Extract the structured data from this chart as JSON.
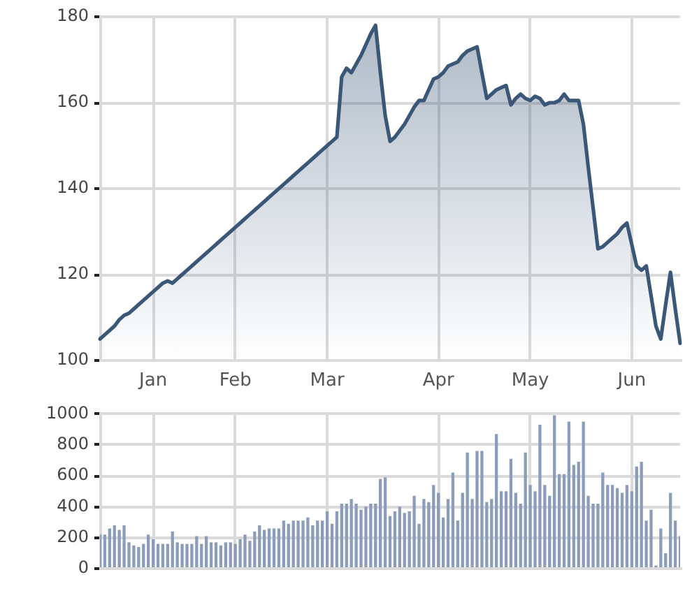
{
  "chart_data": [
    {
      "type": "area",
      "categories": [
        null,
        null,
        null,
        null,
        null,
        null,
        null,
        null,
        null,
        null,
        null,
        "Jan",
        null,
        null,
        null,
        null,
        null,
        null,
        null,
        null,
        null,
        null,
        null,
        null,
        null,
        null,
        null,
        null,
        "Feb",
        null,
        null,
        null,
        null,
        null,
        null,
        null,
        null,
        null,
        null,
        null,
        null,
        null,
        null,
        null,
        null,
        null,
        null,
        "Mar",
        null,
        null,
        null,
        null,
        null,
        null,
        null,
        null,
        null,
        null,
        null,
        null,
        null,
        null,
        null,
        null,
        null,
        null,
        null,
        null,
        null,
        null,
        "Apr",
        null,
        null,
        null,
        null,
        null,
        null,
        null,
        null,
        null,
        null,
        null,
        null,
        null,
        null,
        null,
        null,
        null,
        null,
        "May",
        null,
        null,
        null,
        null,
        null,
        null,
        null,
        null,
        null,
        null,
        null,
        null,
        null,
        null,
        null,
        null,
        null,
        null,
        null,
        null,
        "Jun",
        null,
        null,
        null,
        null,
        null,
        null,
        null,
        null,
        null,
        null
      ],
      "values": [
        105,
        106,
        107,
        108,
        109.5,
        110.5,
        111,
        112,
        113,
        114,
        115,
        116,
        117,
        118,
        118.5,
        118,
        119,
        120,
        121,
        122,
        123,
        124,
        125,
        126,
        127,
        128,
        129,
        130,
        131,
        132,
        133,
        134,
        135,
        136,
        137,
        138,
        139,
        140,
        141,
        142,
        143,
        144,
        145,
        146,
        147,
        148,
        149,
        150,
        151,
        152,
        166,
        168,
        167,
        169,
        171,
        173.5,
        176,
        178,
        167,
        157,
        151,
        152,
        153.5,
        155,
        157,
        159,
        160.5,
        160.5,
        163,
        165.5,
        166,
        167,
        168.5,
        169,
        169.5,
        171,
        172,
        172.5,
        173,
        167,
        161,
        162,
        163,
        163.5,
        164,
        159.5,
        161,
        162,
        161,
        160.5,
        161.5,
        161,
        159.5,
        160,
        160,
        160.5,
        162,
        160.5,
        160.5,
        160.5,
        155,
        145,
        135.5,
        126,
        126.5,
        127.5,
        128.5,
        129.5,
        131,
        132,
        127,
        122,
        121,
        122,
        115,
        108,
        105,
        113,
        120.5,
        112,
        104
      ],
      "color": "#3a5777",
      "ylim": [
        100,
        180
      ],
      "yticks": [
        100,
        120,
        140,
        160,
        180
      ],
      "grid": true,
      "marker": "none"
    },
    {
      "type": "bar",
      "categories": [
        null,
        null,
        null,
        null,
        null,
        null,
        null,
        null,
        null,
        null,
        null,
        null,
        null,
        null,
        null,
        null,
        null,
        null,
        null,
        null,
        null,
        null,
        null,
        null,
        null,
        null,
        null,
        null,
        null,
        null,
        null,
        null,
        null,
        null,
        null,
        null,
        null,
        null,
        null,
        null,
        null,
        null,
        null,
        null,
        null,
        null,
        null,
        null,
        null,
        null,
        null,
        null,
        null,
        null,
        null,
        null,
        null,
        null,
        null,
        null,
        null,
        null,
        null,
        null,
        null,
        null,
        null,
        null,
        null,
        null,
        null,
        null,
        null,
        null,
        null,
        null,
        null,
        null,
        null,
        null,
        null,
        null,
        null,
        null,
        null,
        null,
        null,
        null,
        null,
        null,
        null,
        null,
        null,
        null,
        null,
        null,
        null,
        null,
        null,
        null,
        null,
        null,
        null,
        null,
        null,
        null,
        null,
        null,
        null,
        null,
        null,
        null,
        null,
        null,
        null,
        null,
        null,
        null,
        null,
        null,
        null
      ],
      "values": [
        220,
        220,
        260,
        280,
        250,
        280,
        170,
        150,
        140,
        160,
        220,
        190,
        160,
        160,
        160,
        240,
        170,
        160,
        160,
        160,
        210,
        160,
        210,
        170,
        170,
        150,
        170,
        170,
        160,
        190,
        220,
        180,
        240,
        280,
        250,
        260,
        260,
        260,
        310,
        290,
        310,
        310,
        310,
        330,
        280,
        310,
        310,
        370,
        290,
        370,
        420,
        420,
        450,
        420,
        380,
        400,
        420,
        420,
        580,
        590,
        340,
        370,
        400,
        360,
        370,
        470,
        290,
        450,
        430,
        540,
        490,
        330,
        450,
        620,
        310,
        490,
        750,
        450,
        760,
        760,
        430,
        450,
        870,
        500,
        500,
        710,
        490,
        420,
        750,
        540,
        500,
        930,
        540,
        470,
        990,
        610,
        610,
        950,
        670,
        690,
        950,
        470,
        420,
        420,
        620,
        540,
        540,
        520,
        490,
        540,
        500,
        660,
        690,
        310,
        380,
        20,
        260,
        100,
        490,
        310,
        210
      ],
      "color": "#8b9dba",
      "ylim": [
        0,
        1000
      ],
      "yticks": [
        0,
        200,
        400,
        600,
        800,
        1000
      ],
      "grid": true
    }
  ]
}
